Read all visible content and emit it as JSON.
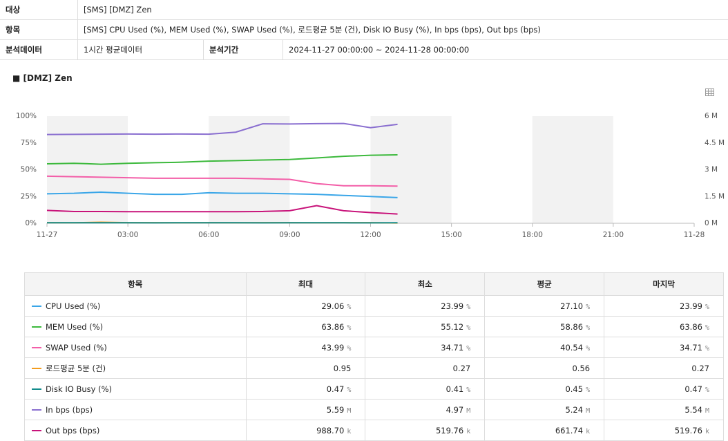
{
  "info": {
    "rows": [
      {
        "label": "대상",
        "value": "[SMS] [DMZ] Zen"
      },
      {
        "label": "항목",
        "value": "[SMS] CPU Used (%), MEM Used (%), SWAP Used (%), 로드평균 5분 (건), Disk IO Busy (%), In bps (bps), Out bps (bps)"
      }
    ],
    "analysis": {
      "label": "분석데이터",
      "value": "1시간 평균데이터",
      "period_label": "분석기간",
      "period_value": "2024-11-27 00:00:00 ~ 2024-11-28 00:00:00"
    }
  },
  "chart": {
    "type": "line",
    "title": "[DMZ] Zen",
    "x": [
      0,
      1,
      2,
      3,
      4,
      5,
      6,
      7,
      8,
      9,
      10,
      11,
      12,
      13
    ],
    "xlim": [
      0,
      24
    ],
    "xticks": [
      {
        "value": 0,
        "label": "11-27"
      },
      {
        "value": 3,
        "label": "03:00"
      },
      {
        "value": 6,
        "label": "06:00"
      },
      {
        "value": 9,
        "label": "09:00"
      },
      {
        "value": 12,
        "label": "12:00"
      },
      {
        "value": 15,
        "label": "15:00"
      },
      {
        "value": 18,
        "label": "18:00"
      },
      {
        "value": 21,
        "label": "21:00"
      },
      {
        "value": 24,
        "label": "11-28"
      }
    ],
    "ylim": [
      0,
      100
    ],
    "yticks": [
      {
        "value": 0,
        "label": "0%"
      },
      {
        "value": 25,
        "label": "25%"
      },
      {
        "value": 50,
        "label": "50%"
      },
      {
        "value": 75,
        "label": "75%"
      },
      {
        "value": 100,
        "label": "100%"
      }
    ],
    "y2lim": [
      0,
      6000000
    ],
    "y2ticks": [
      {
        "value": 0,
        "label": "0 M"
      },
      {
        "value": 1500000,
        "label": "1.5 M"
      },
      {
        "value": 3000000,
        "label": "3 M"
      },
      {
        "value": 4500000,
        "label": "4.5 M"
      },
      {
        "value": 6000000,
        "label": "6 M"
      }
    ],
    "series": [
      {
        "name": "CPU Used (%)",
        "color": "#3aa6e8",
        "values": [
          27.5,
          28,
          29.06,
          28,
          27,
          27,
          28.5,
          28,
          28,
          27.5,
          27,
          26,
          25,
          23.99
        ]
      },
      {
        "name": "MEM Used (%)",
        "color": "#3cb93c",
        "values": [
          55.5,
          56,
          55.12,
          56,
          56.5,
          57,
          58,
          58.5,
          59,
          59.5,
          61,
          62.5,
          63.5,
          63.86
        ]
      },
      {
        "name": "SWAP Used (%)",
        "color": "#f35ea8",
        "values": [
          43.99,
          43.5,
          43,
          42.5,
          42,
          42,
          42,
          42,
          41.5,
          41,
          37,
          35,
          35,
          34.71
        ]
      },
      {
        "name": "로드평균 5분 (건)",
        "color": "#f39c1e",
        "values": [
          0.56,
          0.5,
          0.95,
          0.6,
          0.55,
          0.5,
          0.6,
          0.5,
          0.55,
          0.6,
          0.5,
          0.55,
          0.6,
          0.27
        ]
      },
      {
        "name": "Disk IO Busy (%)",
        "color": "#138c8c",
        "values": [
          0.45,
          0.45,
          0.47,
          0.45,
          0.44,
          0.45,
          0.46,
          0.45,
          0.44,
          0.45,
          0.46,
          0.45,
          0.41,
          0.47
        ]
      },
      {
        "name": "In bps (bps)",
        "color": "#8a6fd0",
        "axis": "y2",
        "values": [
          4970000,
          4980000,
          4990000,
          5000000,
          4990000,
          5000000,
          4990000,
          5100000,
          5570000,
          5560000,
          5580000,
          5590000,
          5350000,
          5540000
        ]
      },
      {
        "name": "Out bps (bps)",
        "color": "#c8137a",
        "axis": "y2",
        "values": [
          720000,
          660000,
          660000,
          650000,
          650000,
          650000,
          650000,
          650000,
          660000,
          700000,
          988700,
          700000,
          600000,
          519760
        ]
      }
    ]
  },
  "table": {
    "header": [
      "항목",
      "최대",
      "최소",
      "평균",
      "마지막"
    ],
    "rows": [
      {
        "cells": [
          "29.06",
          "23.99",
          "27.10",
          "23.99"
        ],
        "unit": "%"
      },
      {
        "cells": [
          "63.86",
          "55.12",
          "58.86",
          "63.86"
        ],
        "unit": "%"
      },
      {
        "cells": [
          "43.99",
          "34.71",
          "40.54",
          "34.71"
        ],
        "unit": "%"
      },
      {
        "cells": [
          "0.95",
          "0.27",
          "0.56",
          "0.27"
        ]
      },
      {
        "cells": [
          "0.47",
          "0.41",
          "0.45",
          "0.47"
        ],
        "unit": "%"
      },
      {
        "cells": [
          "5.59",
          "4.97",
          "5.24",
          "5.54"
        ],
        "unit": "M"
      },
      {
        "cells": [
          "988.70",
          "519.76",
          "661.74",
          "519.76"
        ],
        "unit": "k"
      }
    ]
  }
}
